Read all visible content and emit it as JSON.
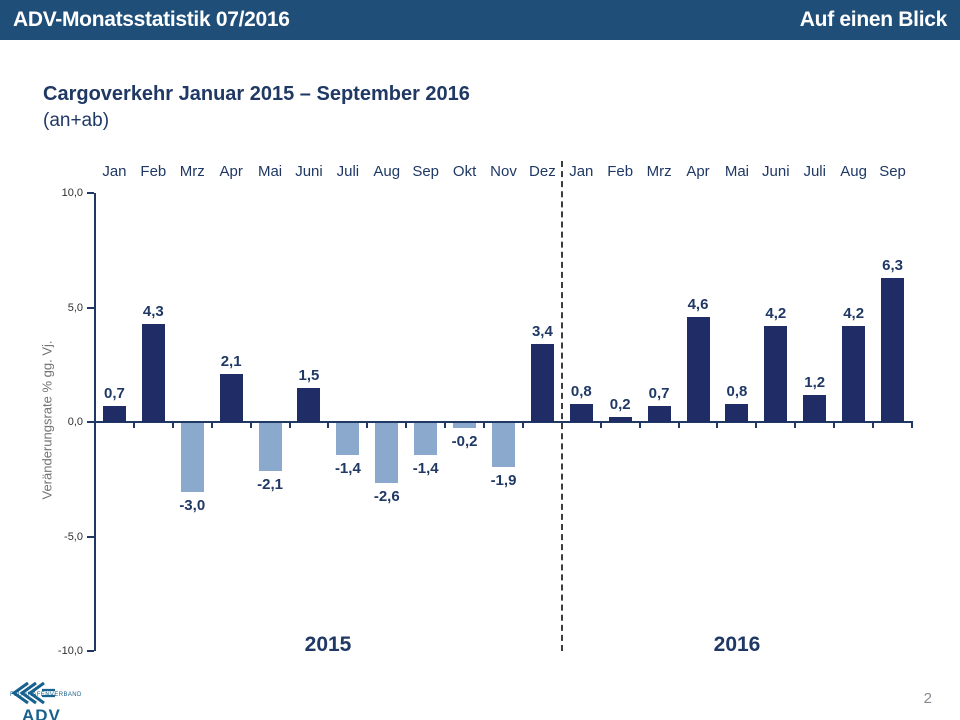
{
  "header": {
    "left": "ADV-Monatsstatistik 07/2016",
    "right": "Auf einen Blick"
  },
  "title": "Cargoverkehr Januar 2015 – September 2016",
  "subtitle": "(an+ab)",
  "page_number": "2",
  "logo": {
    "org": "FLUGHAFENVERBAND",
    "abbr": "ADV"
  },
  "colors": {
    "header_bg": "#1F4E79",
    "title_text": "#1F3864",
    "logo_blue": "#17618E"
  },
  "chart_data": {
    "type": "bar",
    "title": "Cargoverkehr Januar 2015 – September 2016 (an+ab)",
    "xlabel": "",
    "ylabel": "Veränderungsrate % gg. Vj.",
    "ylim": [
      -10.0,
      10.0
    ],
    "yticks": [
      10.0,
      5.0,
      0.0,
      -5.0,
      -10.0
    ],
    "ytick_labels": [
      "10,0",
      "5,0",
      "0,0",
      "-5,0",
      "-10,0"
    ],
    "grid": false,
    "legend": "none",
    "categories": [
      "Jan",
      "Feb",
      "Mrz",
      "Apr",
      "Mai",
      "Juni",
      "Juli",
      "Aug",
      "Sep",
      "Okt",
      "Nov",
      "Dez",
      "Jan",
      "Feb",
      "Mrz",
      "Apr",
      "Mai",
      "Juni",
      "Juli",
      "Aug",
      "Sep"
    ],
    "values": [
      0.7,
      4.3,
      -3.0,
      2.1,
      -2.1,
      1.5,
      -1.4,
      -2.6,
      -1.4,
      -0.2,
      -1.9,
      3.4,
      0.8,
      0.2,
      0.7,
      4.6,
      0.8,
      4.2,
      1.2,
      4.2,
      6.3
    ],
    "value_labels": [
      "0,7",
      "4,3",
      "-3,0",
      "2,1",
      "-2,1",
      "1,5",
      "-1,4",
      "-2,6",
      "-1,4",
      "-0,2",
      "-1,9",
      "3,4",
      "0,8",
      "0,2",
      "0,7",
      "4,6",
      "0,8",
      "4,2",
      "1,2",
      "4,2",
      "6,3"
    ],
    "group_labels": [
      "2015",
      "2016"
    ],
    "separator_after_index": 11,
    "bar_colors": {
      "positive": "#202C65",
      "negative": "#8BA9CC"
    }
  }
}
